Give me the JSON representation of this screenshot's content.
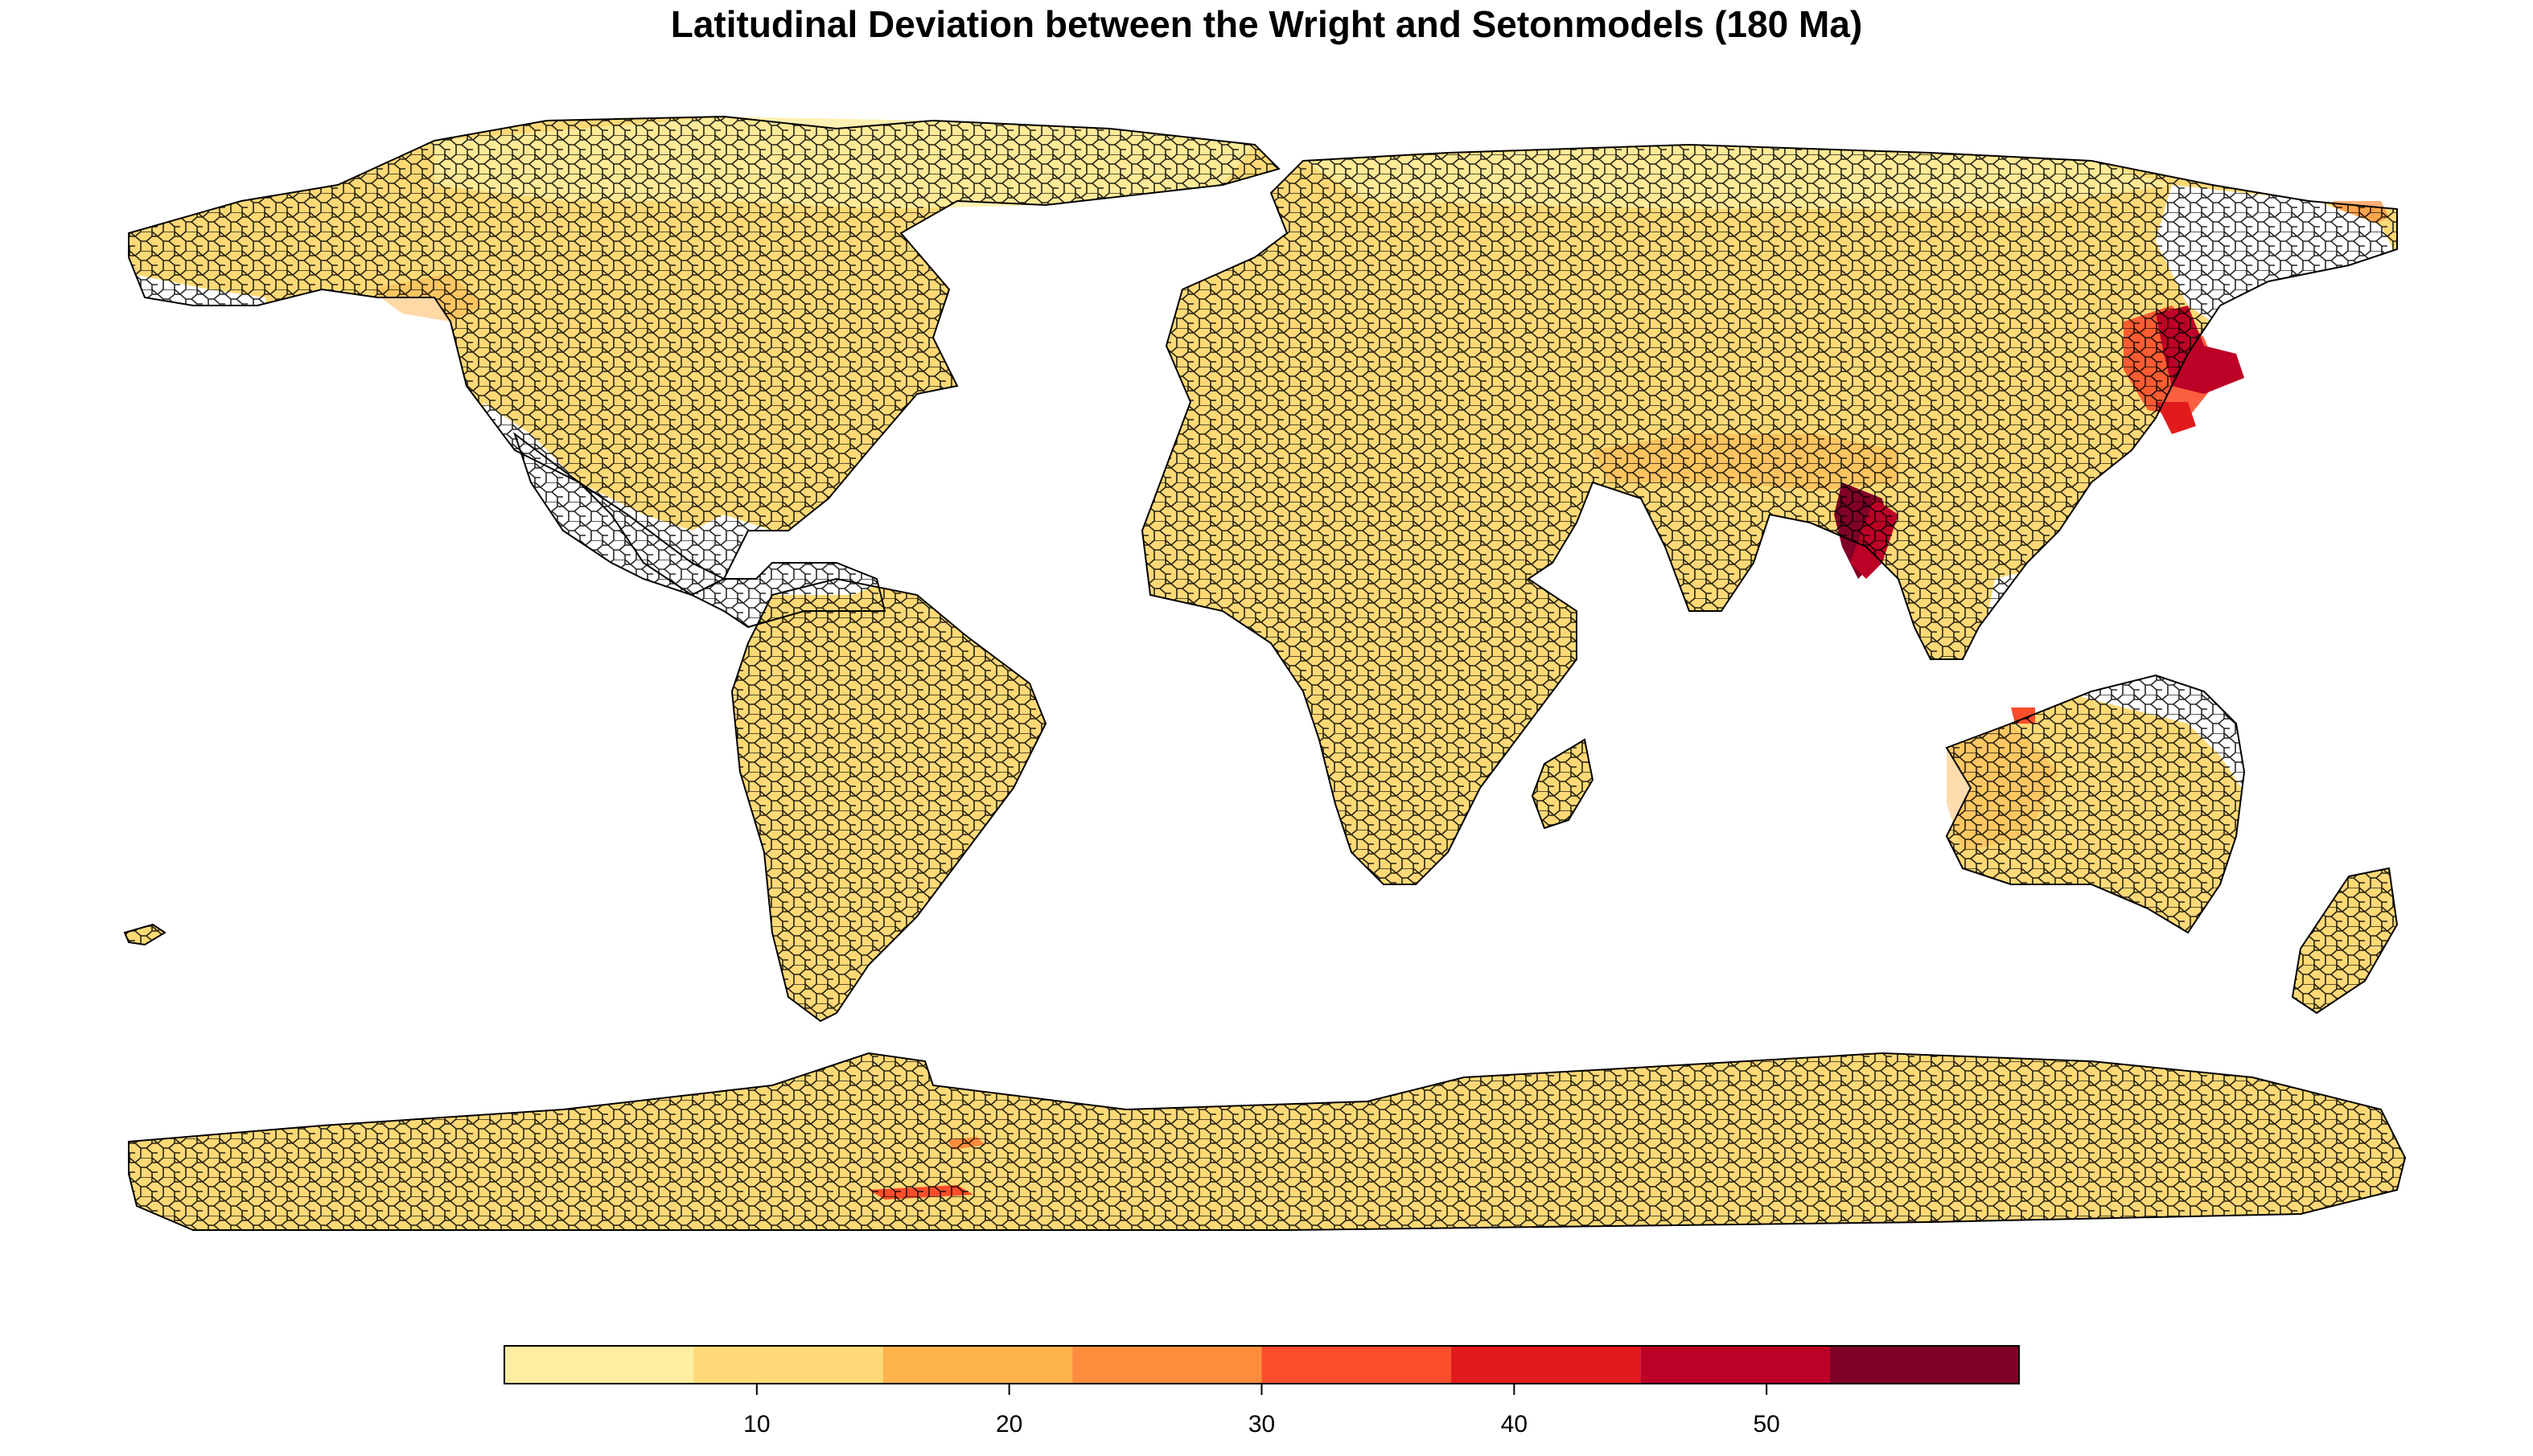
{
  "title": "Latitudinal Deviation between the Wright and Setonmodels (180 Ma)",
  "colors": {
    "ocean": "#ffffff",
    "no_data": "#ffffff",
    "cell_outline": "#000000"
  },
  "legend": {
    "range": [
      0,
      60
    ],
    "bins": [
      {
        "from": 0,
        "to": 7.5,
        "color": "#FFEDA0"
      },
      {
        "from": 7.5,
        "to": 15,
        "color": "#FED976"
      },
      {
        "from": 15,
        "to": 22.5,
        "color": "#FEB24C"
      },
      {
        "from": 22.5,
        "to": 30,
        "color": "#FD8D3C"
      },
      {
        "from": 30,
        "to": 37.5,
        "color": "#FC4E2A"
      },
      {
        "from": 37.5,
        "to": 45,
        "color": "#E31A1C"
      },
      {
        "from": 45,
        "to": 52.5,
        "color": "#BD0026"
      },
      {
        "from": 52.5,
        "to": 60,
        "color": "#800026"
      }
    ],
    "ticks": [
      10,
      20,
      30,
      40,
      50
    ]
  }
}
